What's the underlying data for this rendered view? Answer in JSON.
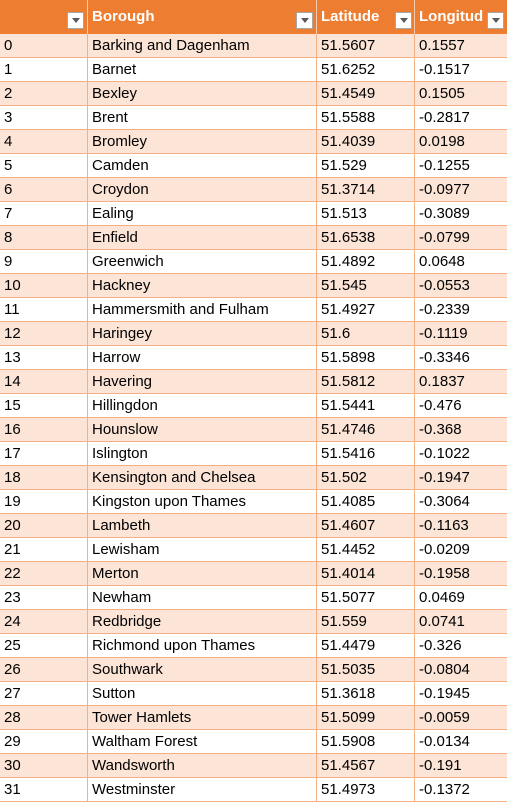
{
  "columns": [
    "",
    "Borough",
    "Latitude",
    "Longitud"
  ],
  "rows": [
    {
      "idx": "0",
      "borough": "Barking and Dagenham",
      "lat": "51.5607",
      "lon": "0.1557"
    },
    {
      "idx": "1",
      "borough": "Barnet",
      "lat": "51.6252",
      "lon": "-0.1517"
    },
    {
      "idx": "2",
      "borough": "Bexley",
      "lat": "51.4549",
      "lon": "0.1505"
    },
    {
      "idx": "3",
      "borough": "Brent",
      "lat": "51.5588",
      "lon": "-0.2817"
    },
    {
      "idx": "4",
      "borough": "Bromley",
      "lat": "51.4039",
      "lon": "0.0198"
    },
    {
      "idx": "5",
      "borough": "Camden",
      "lat": "51.529",
      "lon": "-0.1255"
    },
    {
      "idx": "6",
      "borough": "Croydon",
      "lat": "51.3714",
      "lon": "-0.0977"
    },
    {
      "idx": "7",
      "borough": "Ealing",
      "lat": "51.513",
      "lon": "-0.3089"
    },
    {
      "idx": "8",
      "borough": "Enfield",
      "lat": "51.6538",
      "lon": "-0.0799"
    },
    {
      "idx": "9",
      "borough": "Greenwich",
      "lat": "51.4892",
      "lon": "0.0648"
    },
    {
      "idx": "10",
      "borough": "Hackney",
      "lat": "51.545",
      "lon": "-0.0553"
    },
    {
      "idx": "11",
      "borough": "Hammersmith and Fulham",
      "lat": "51.4927",
      "lon": "-0.2339"
    },
    {
      "idx": "12",
      "borough": "Haringey",
      "lat": "51.6",
      "lon": "-0.1119"
    },
    {
      "idx": "13",
      "borough": "Harrow",
      "lat": "51.5898",
      "lon": "-0.3346"
    },
    {
      "idx": "14",
      "borough": "Havering",
      "lat": "51.5812",
      "lon": "0.1837"
    },
    {
      "idx": "15",
      "borough": "Hillingdon",
      "lat": "51.5441",
      "lon": "-0.476"
    },
    {
      "idx": "16",
      "borough": "Hounslow",
      "lat": "51.4746",
      "lon": "-0.368"
    },
    {
      "idx": "17",
      "borough": "Islington",
      "lat": "51.5416",
      "lon": "-0.1022"
    },
    {
      "idx": "18",
      "borough": "Kensington and Chelsea",
      "lat": "51.502",
      "lon": "-0.1947"
    },
    {
      "idx": "19",
      "borough": "Kingston upon Thames",
      "lat": "51.4085",
      "lon": "-0.3064"
    },
    {
      "idx": "20",
      "borough": "Lambeth",
      "lat": "51.4607",
      "lon": "-0.1163"
    },
    {
      "idx": "21",
      "borough": "Lewisham",
      "lat": "51.4452",
      "lon": "-0.0209"
    },
    {
      "idx": "22",
      "borough": "Merton",
      "lat": "51.4014",
      "lon": "-0.1958"
    },
    {
      "idx": "23",
      "borough": "Newham",
      "lat": "51.5077",
      "lon": "0.0469"
    },
    {
      "idx": "24",
      "borough": "Redbridge",
      "lat": "51.559",
      "lon": "0.0741"
    },
    {
      "idx": "25",
      "borough": "Richmond upon Thames",
      "lat": "51.4479",
      "lon": "-0.326"
    },
    {
      "idx": "26",
      "borough": "Southwark",
      "lat": "51.5035",
      "lon": "-0.0804"
    },
    {
      "idx": "27",
      "borough": "Sutton",
      "lat": "51.3618",
      "lon": "-0.1945"
    },
    {
      "idx": "28",
      "borough": "Tower Hamlets",
      "lat": "51.5099",
      "lon": "-0.0059"
    },
    {
      "idx": "29",
      "borough": "Waltham Forest",
      "lat": "51.5908",
      "lon": "-0.0134"
    },
    {
      "idx": "30",
      "borough": "Wandsworth",
      "lat": "51.4567",
      "lon": "-0.191"
    },
    {
      "idx": "31",
      "borough": "Westminster",
      "lat": "51.4973",
      "lon": "-0.1372"
    }
  ],
  "colors": {
    "header_bg": "#ED7D31",
    "band_bg": "#FCE4D6",
    "border": "#F4B084"
  },
  "icons": {
    "filter": "dropdown-arrow-icon"
  }
}
